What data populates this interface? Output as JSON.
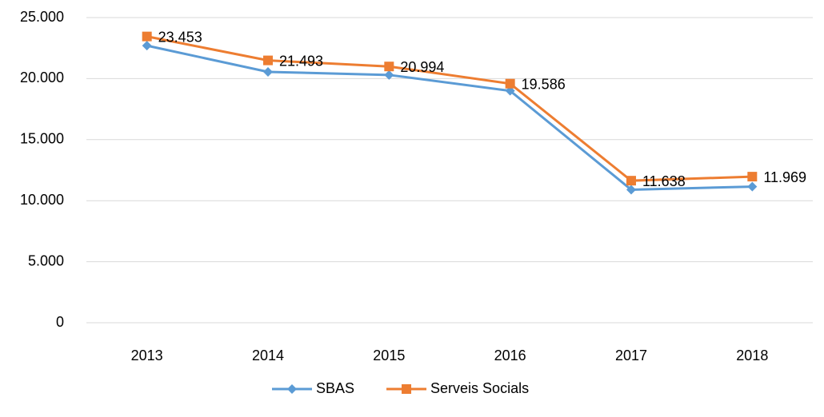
{
  "chart_data": {
    "type": "line",
    "categories": [
      "2013",
      "2014",
      "2015",
      "2016",
      "2017",
      "2018"
    ],
    "series": [
      {
        "name": "SBAS",
        "color": "#5b9bd5",
        "marker": "diamond",
        "values": [
          22700,
          20550,
          20300,
          19000,
          10900,
          11150
        ]
      },
      {
        "name": "Serveis Socials",
        "color": "#ed7d31",
        "marker": "square",
        "values": [
          23453,
          21493,
          20994,
          19586,
          11638,
          11969
        ],
        "value_labels": [
          "23.453",
          "21.493",
          "20.994",
          "19.586",
          "11.638",
          "11.969"
        ]
      }
    ],
    "ylim": [
      0,
      25000
    ],
    "yticks": [
      0,
      {
        "value": 5000,
        "label": "5.000"
      },
      {
        "value": 10000,
        "label": "10.000"
      },
      {
        "value": 15000,
        "label": "15.000"
      },
      {
        "value": 20000,
        "label": "20.000"
      },
      {
        "value": 25000,
        "label": "25.000"
      }
    ],
    "grid": true,
    "legend": "bottom"
  }
}
